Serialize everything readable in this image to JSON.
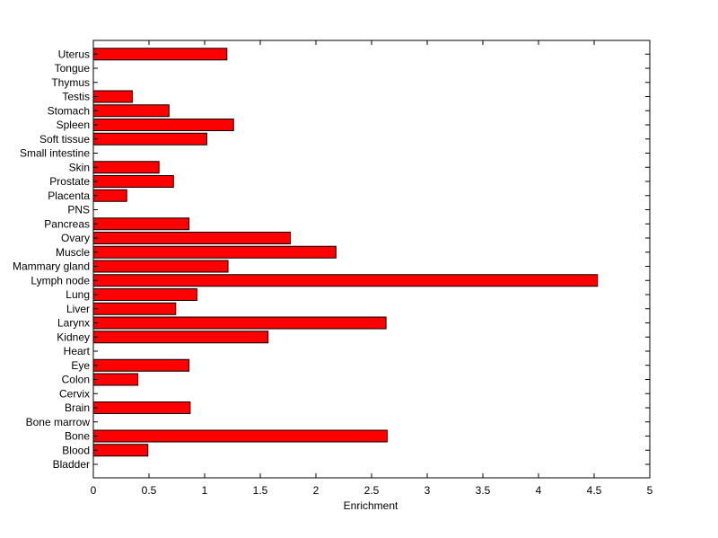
{
  "chart_data": {
    "type": "bar",
    "orientation": "horizontal",
    "title": "",
    "xlabel": "Enrichment",
    "ylabel": "",
    "xlim": [
      0,
      5
    ],
    "xticks": [
      "0",
      "0.5",
      "1",
      "1.5",
      "2",
      "2.5",
      "3",
      "3.5",
      "4",
      "4.5",
      "5"
    ],
    "bar_color": "#ff0000",
    "edge_color": "#000000",
    "grid": false,
    "categories": [
      "Bladder",
      "Blood",
      "Bone",
      "Bone marrow",
      "Brain",
      "Cervix",
      "Colon",
      "Eye",
      "Heart",
      "Kidney",
      "Larynx",
      "Liver",
      "Lung",
      "Lymph node",
      "Mammary gland",
      "Muscle",
      "Ovary",
      "Pancreas",
      "PNS",
      "Placenta",
      "Prostate",
      "Skin",
      "Small intestine",
      "Soft tissue",
      "Spleen",
      "Stomach",
      "Testis",
      "Thymus",
      "Tongue",
      "Uterus"
    ],
    "values": [
      0,
      0.49,
      2.64,
      0,
      0.87,
      0,
      0.4,
      0.86,
      0,
      1.57,
      2.63,
      0.74,
      0.93,
      4.53,
      1.21,
      2.18,
      1.77,
      0.86,
      0,
      0.3,
      0.72,
      0.59,
      0,
      1.02,
      1.26,
      0.68,
      0.35,
      0,
      0,
      1.2
    ]
  }
}
